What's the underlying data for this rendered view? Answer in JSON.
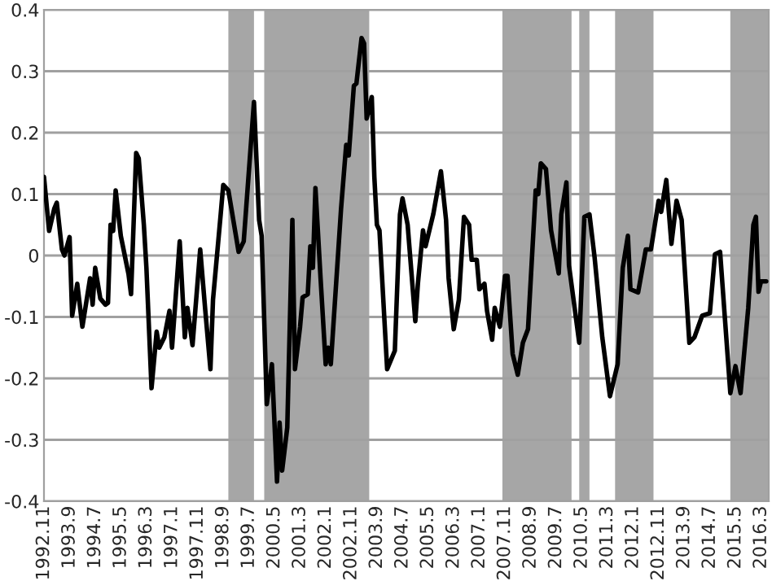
{
  "chart_data": {
    "type": "line",
    "x": [
      "1992-11",
      "1993-01",
      "1993-03",
      "1993-04",
      "1993-06",
      "1993-07",
      "1993-09",
      "1993-10",
      "1993-12",
      "1994-02",
      "1994-05",
      "1994-06",
      "1994-07",
      "1994-09",
      "1994-11",
      "1994-12",
      "1995-01",
      "1995-02",
      "1995-03",
      "1995-05",
      "1995-08",
      "1995-09",
      "1995-11",
      "1995-12",
      "1996-02",
      "1996-03",
      "1996-05",
      "1996-07",
      "1996-08",
      "1996-10",
      "1996-12",
      "1997-01",
      "1997-04",
      "1997-06",
      "1997-07",
      "1997-09",
      "1997-12",
      "1998-02",
      "1998-04",
      "1998-05",
      "1998-08",
      "1998-09",
      "1998-11",
      "1999-03",
      "1999-05",
      "1999-09",
      "1999-11",
      "1999-12",
      "2000-02",
      "2000-04",
      "2000-06",
      "2000-07",
      "2000-08",
      "2000-10",
      "2000-12",
      "2001-01",
      "2001-03",
      "2001-04",
      "2001-06",
      "2001-07",
      "2001-08",
      "2001-09",
      "2001-11",
      "2002-01",
      "2002-02",
      "2002-03",
      "2002-07",
      "2002-09",
      "2002-10",
      "2002-12",
      "2003-01",
      "2003-03",
      "2003-04",
      "2003-05",
      "2003-07",
      "2003-08",
      "2003-09",
      "2003-10",
      "2004-01",
      "2004-04",
      "2004-06",
      "2004-07",
      "2004-09",
      "2004-12",
      "2005-01",
      "2005-03",
      "2005-04",
      "2005-07",
      "2005-10",
      "2005-12",
      "2006-01",
      "2006-03",
      "2006-05",
      "2006-07",
      "2006-09",
      "2006-10",
      "2006-12",
      "2007-01",
      "2007-03",
      "2007-04",
      "2007-06",
      "2007-07",
      "2007-09",
      "2007-11",
      "2007-12",
      "2008-02",
      "2008-04",
      "2008-06",
      "2008-08",
      "2008-11",
      "2008-12",
      "2009-01",
      "2009-03",
      "2009-05",
      "2009-08",
      "2009-09",
      "2009-11",
      "2009-12",
      "2010-04",
      "2010-06",
      "2010-08",
      "2010-10",
      "2011-01",
      "2011-04",
      "2011-07",
      "2011-09",
      "2011-11",
      "2011-12",
      "2012-03",
      "2012-06",
      "2012-08",
      "2012-11",
      "2012-12",
      "2013-02",
      "2013-04",
      "2013-06",
      "2013-08",
      "2013-11",
      "2014-01",
      "2014-04",
      "2014-07",
      "2014-09",
      "2014-11",
      "2015-03",
      "2015-05",
      "2015-07",
      "2015-10",
      "2015-12",
      "2016-01",
      "2016-02",
      "2016-03",
      "2016-05"
    ],
    "series": [
      {
        "color": "#000000",
        "values": [
          0.128,
          0.04,
          0.076,
          0.086,
          0.01,
          0,
          0.03,
          -0.098,
          -0.046,
          -0.116,
          -0.037,
          -0.08,
          -0.02,
          -0.07,
          -0.08,
          -0.077,
          0.05,
          0.04,
          0.106,
          0.032,
          -0.03,
          -0.063,
          0.167,
          0.158,
          0.05,
          -0.02,
          -0.216,
          -0.124,
          -0.15,
          -0.133,
          -0.09,
          -0.15,
          0.023,
          -0.133,
          -0.085,
          -0.146,
          0.01,
          -0.09,
          -0.185,
          -0.072,
          0.067,
          0.115,
          0.106,
          0.006,
          0.023,
          0.25,
          0.058,
          0.032,
          -0.242,
          -0.177,
          -0.368,
          -0.272,
          -0.35,
          -0.28,
          0.058,
          -0.185,
          -0.116,
          -0.068,
          -0.063,
          0.015,
          -0.02,
          0.11,
          -0.037,
          -0.177,
          -0.15,
          -0.177,
          0.076,
          0.18,
          0.163,
          0.276,
          0.28,
          0.354,
          0.345,
          0.223,
          0.258,
          0.128,
          0.05,
          0.041,
          -0.185,
          -0.155,
          0.067,
          0.093,
          0.05,
          -0.107,
          -0.046,
          0.041,
          0.015,
          0.067,
          0.137,
          0.058,
          -0.037,
          -0.12,
          -0.072,
          0.063,
          0.05,
          -0.007,
          -0.007,
          -0.055,
          -0.046,
          -0.09,
          -0.137,
          -0.085,
          -0.116,
          -0.033,
          -0.033,
          -0.16,
          -0.194,
          -0.142,
          -0.12,
          0.106,
          0.1,
          0.15,
          0.141,
          0.041,
          -0.029,
          0.067,
          0.119,
          -0.016,
          -0.142,
          0.063,
          0.067,
          -0.003,
          -0.133,
          -0.229,
          -0.177,
          -0.02,
          0.032,
          -0.055,
          -0.06,
          0.01,
          0.01,
          0.089,
          0.071,
          0.123,
          0.019,
          0.089,
          0.058,
          -0.142,
          -0.133,
          -0.098,
          -0.094,
          0.002,
          0.006,
          -0.224,
          -0.18,
          -0.224,
          -0.085,
          0.05,
          0.063,
          -0.059,
          -0.042,
          -0.042
        ]
      }
    ],
    "xlim": [
      "1992-11",
      "2016-06"
    ],
    "xticks": [
      {
        "value": "1992-11",
        "label": "1992.11"
      },
      {
        "value": "1993-09",
        "label": "1993.9"
      },
      {
        "value": "1994-07",
        "label": "1994.7"
      },
      {
        "value": "1995-05",
        "label": "1995.5"
      },
      {
        "value": "1996-03",
        "label": "1996.3"
      },
      {
        "value": "1997-01",
        "label": "1997.1"
      },
      {
        "value": "1997-11",
        "label": "1997.11"
      },
      {
        "value": "1998-09",
        "label": "1998.9"
      },
      {
        "value": "1999-07",
        "label": "1999.7"
      },
      {
        "value": "2000-05",
        "label": "2000.5"
      },
      {
        "value": "2001-03",
        "label": "2001.3"
      },
      {
        "value": "2002-01",
        "label": "2002.1"
      },
      {
        "value": "2002-11",
        "label": "2002.11"
      },
      {
        "value": "2003-09",
        "label": "2003.9"
      },
      {
        "value": "2004-07",
        "label": "2004.7"
      },
      {
        "value": "2005-05",
        "label": "2005.5"
      },
      {
        "value": "2006-03",
        "label": "2006.3"
      },
      {
        "value": "2007-01",
        "label": "2007.1"
      },
      {
        "value": "2007-11",
        "label": "2007.11"
      },
      {
        "value": "2008-09",
        "label": "2008.9"
      },
      {
        "value": "2009-07",
        "label": "2009.7"
      },
      {
        "value": "2010-05",
        "label": "2010.5"
      },
      {
        "value": "2011-03",
        "label": "2011.3"
      },
      {
        "value": "2012-01",
        "label": "2012.1"
      },
      {
        "value": "2012-11",
        "label": "2012.11"
      },
      {
        "value": "2013-09",
        "label": "2013.9"
      },
      {
        "value": "2014-07",
        "label": "2014.7"
      },
      {
        "value": "2015-05",
        "label": "2015.5"
      },
      {
        "value": "2016-03",
        "label": "2016.3"
      }
    ],
    "ylim": [
      -0.4,
      0.4
    ],
    "yticks": [
      {
        "value": -0.4,
        "label": "-0.4"
      },
      {
        "value": -0.3,
        "label": "-0.3"
      },
      {
        "value": -0.2,
        "label": "-0.2"
      },
      {
        "value": -0.1,
        "label": "-0.1"
      },
      0,
      0.1,
      0.2,
      0.3,
      0.4
    ],
    "bands": [
      {
        "axis": "x",
        "from": "1998-11",
        "to": "1999-09",
        "color": "#a6a6a6"
      },
      {
        "axis": "x",
        "from": "2000-01",
        "to": "2003-06",
        "color": "#a6a6a6"
      },
      {
        "axis": "x",
        "from": "2007-10",
        "to": "2010-01",
        "color": "#a6a6a6"
      },
      {
        "axis": "x",
        "from": "2010-04",
        "to": "2010-08",
        "color": "#a6a6a6"
      },
      {
        "axis": "x",
        "from": "2011-06",
        "to": "2012-09",
        "color": "#a6a6a6"
      },
      {
        "axis": "x",
        "from": "2015-03",
        "to": "2016-06",
        "color": "#a6a6a6"
      }
    ],
    "grid": "y",
    "marker": "none",
    "line_style": "solid",
    "legend": false
  }
}
